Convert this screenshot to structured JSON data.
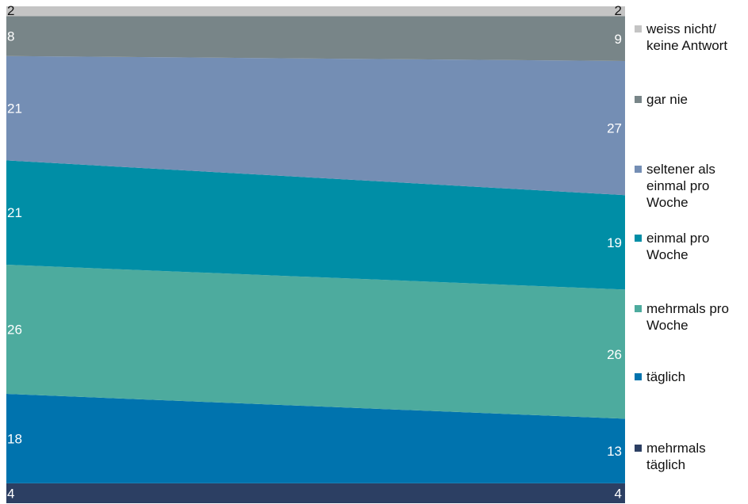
{
  "chart_data": {
    "type": "area",
    "stacked": "percent",
    "categories": [
      "",
      ""
    ],
    "series": [
      {
        "name": "mehrmals täglich",
        "values": [
          4,
          4
        ],
        "color": "#2c3f63",
        "label_color": "#ffffff"
      },
      {
        "name": "täglich",
        "values": [
          18,
          13
        ],
        "color": "#0073ae",
        "label_color": "#ffffff"
      },
      {
        "name": "mehrmals pro Woche",
        "values": [
          26,
          26
        ],
        "color": "#4dab9e",
        "label_color": "#ffffff"
      },
      {
        "name": "einmal pro Woche",
        "values": [
          21,
          19
        ],
        "color": "#008ea6",
        "label_color": "#ffffff"
      },
      {
        "name": "seltener als einmal pro Woche",
        "values": [
          21,
          27
        ],
        "color": "#748eb4",
        "label_color": "#ffffff"
      },
      {
        "name": "gar nie",
        "values": [
          8,
          9
        ],
        "color": "#788588",
        "label_color": "#ffffff"
      },
      {
        "name": "weiss nicht/ keine Antwort",
        "values": [
          2,
          2
        ],
        "color": "#c4c4c4",
        "label_color": "#111111"
      }
    ],
    "ylim": [
      0,
      100
    ],
    "legend_position": "right",
    "grid": false
  },
  "legend": [
    {
      "text": "weiss nicht/\nkeine Antwort",
      "color": "#c4c4c4"
    },
    {
      "text": "gar nie",
      "color": "#788588"
    },
    {
      "text": "seltener als\neinmal pro\nWoche",
      "color": "#748eb4"
    },
    {
      "text": "einmal pro\nWoche",
      "color": "#008ea6"
    },
    {
      "text": "mehrmals pro\nWoche",
      "color": "#4dab9e"
    },
    {
      "text": "täglich",
      "color": "#0073ae"
    },
    {
      "text": "mehrmals\ntäglich",
      "color": "#2c3f63"
    }
  ]
}
